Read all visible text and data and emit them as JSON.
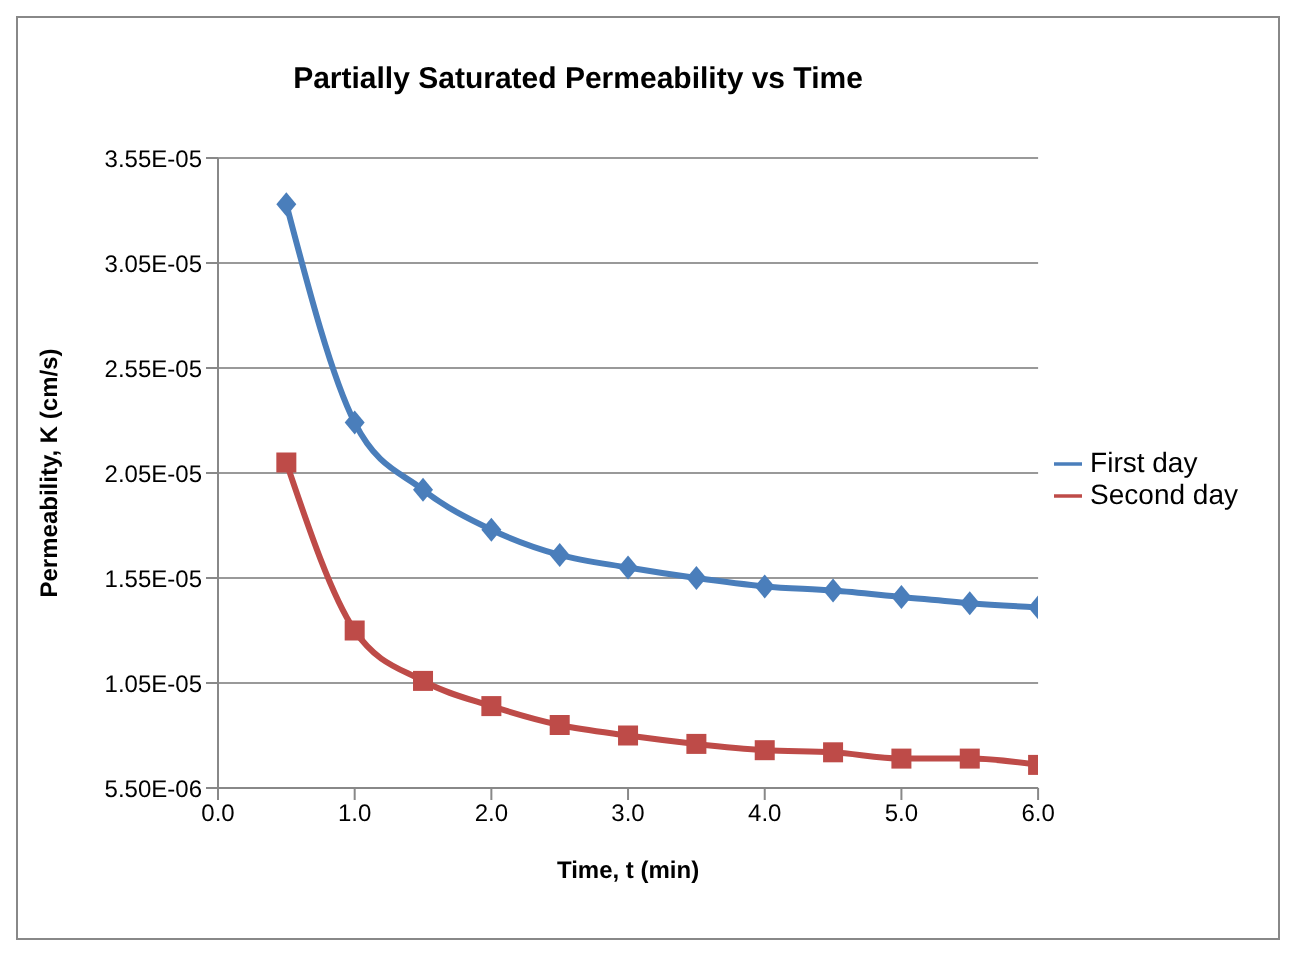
{
  "chart_data": {
    "type": "line",
    "title": "Partially Saturated Permeability vs Time",
    "xlabel": "Time, t (min)",
    "ylabel": "Permeability,  K (cm/s)",
    "x": [
      0.5,
      1.0,
      1.5,
      2.0,
      2.5,
      3.0,
      3.5,
      4.0,
      4.5,
      5.0,
      5.5,
      6.0
    ],
    "series": [
      {
        "name": "First day",
        "color": "#4a7ebb",
        "marker": "diamond",
        "values": [
          3.33e-05,
          2.29e-05,
          1.97e-05,
          1.78e-05,
          1.66e-05,
          1.6e-05,
          1.55e-05,
          1.51e-05,
          1.49e-05,
          1.46e-05,
          1.43e-05,
          1.41e-05
        ]
      },
      {
        "name": "Second day",
        "color": "#be4b48",
        "marker": "square",
        "values": [
          2.1e-05,
          1.3e-05,
          1.06e-05,
          9.4e-06,
          8.5e-06,
          8e-06,
          7.6e-06,
          7.3e-06,
          7.2e-06,
          6.9e-06,
          6.9e-06,
          6.6e-06
        ]
      }
    ],
    "xlim": [
      0,
      6
    ],
    "xticks": [
      {
        "value": 0,
        "label": "0.0"
      },
      {
        "value": 1,
        "label": "1.0"
      },
      {
        "value": 2,
        "label": "2.0"
      },
      {
        "value": 3,
        "label": "3.0"
      },
      {
        "value": 4,
        "label": "4.0"
      },
      {
        "value": 5,
        "label": "5.0"
      },
      {
        "value": 6,
        "label": "6.0"
      }
    ],
    "ylim": [
      5.5e-06,
      3.55e-05
    ],
    "yticks": [
      {
        "value": 5.5e-06,
        "label": "5.50E-06"
      },
      {
        "value": 1.05e-05,
        "label": "1.05E-05"
      },
      {
        "value": 1.55e-05,
        "label": "1.55E-05"
      },
      {
        "value": 2.05e-05,
        "label": "2.05E-05"
      },
      {
        "value": 2.55e-05,
        "label": "2.55E-05"
      },
      {
        "value": 3.05e-05,
        "label": "3.05E-05"
      },
      {
        "value": 3.55e-05,
        "label": "3.55E-05"
      }
    ],
    "grid": "y",
    "legend": "right",
    "line_style": "solid"
  }
}
